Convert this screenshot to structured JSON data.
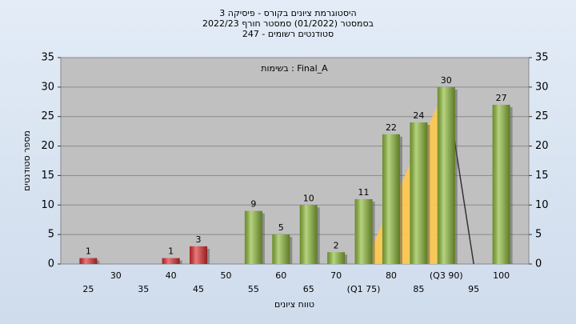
{
  "chart_data": {
    "type": "bar",
    "title": "היסטוגרמת ציונים בקורס - פיסיקה 3",
    "subtitle": "בסמסטר  (01/2022)  סמסטר חורף 2022/23",
    "subtitle2": "סטודנטים רשומים - 247",
    "annotation": "בשימות : Final_A",
    "ylabel": "מספר סטודנטים",
    "xlabel": "טווח ציונים",
    "categories": [
      "25",
      "30",
      "35",
      "40",
      "45",
      "50",
      "55",
      "60",
      "65",
      "70",
      "(Q1 75)",
      "80",
      "85",
      "(Q3 90)",
      "95",
      "100"
    ],
    "x": [
      25,
      30,
      35,
      40,
      45,
      50,
      55,
      60,
      65,
      70,
      75,
      80,
      85,
      90,
      95,
      100
    ],
    "values": [
      1,
      0,
      0,
      1,
      3,
      0,
      9,
      5,
      10,
      2,
      11,
      22,
      24,
      30,
      0,
      27
    ],
    "colors": [
      "#e03030",
      "#e03030",
      "#e03030",
      "#e03030",
      "#e03030",
      "#e03030",
      "#8fbc3a",
      "#8fbc3a",
      "#8fbc3a",
      "#8fbc3a",
      "#8fbc3a",
      "#8fbc3a",
      "#8fbc3a",
      "#8fbc3a",
      "#8fbc3a",
      "#8fbc3a"
    ],
    "quartile_area": {
      "x": [
        75,
        90
      ],
      "values": [
        0,
        30
      ],
      "color": "#ffc94d"
    },
    "quartile_drop": {
      "x": [
        90,
        95
      ],
      "values": [
        30,
        0
      ],
      "color": "#333333"
    },
    "xlim": [
      20,
      105
    ],
    "ylim": [
      0,
      35
    ],
    "yticks": [
      0,
      5,
      10,
      15,
      20,
      25,
      30,
      35
    ],
    "grid": true
  }
}
